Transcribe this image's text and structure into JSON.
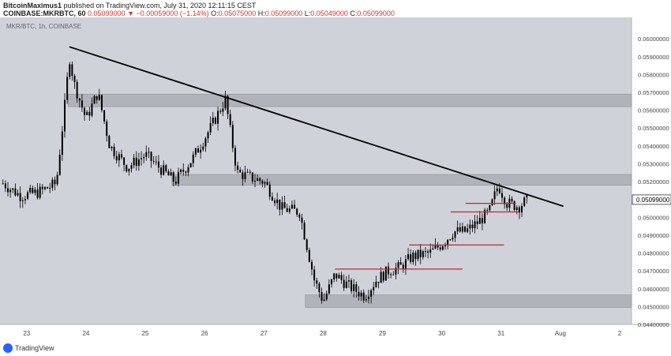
{
  "header": {
    "author": "BitcoinMaximus1",
    "published": "published on TradingView.com, July 31, 2020 12:11:15 CEST",
    "symbol": "COINBASE:MKRBTC, 60",
    "last": "0.05099000",
    "change": "▼ −0.00059000 (−1.14%)",
    "o_label": "O:",
    "o_value": "0.05075000",
    "h_label": "H:",
    "h_value": "0.05099000",
    "l_label": "L:",
    "l_value": "0.05049000",
    "c_label": "C:",
    "c_value": "0.05099000"
  },
  "footer": {
    "brand": "TradingView",
    "logo_icon": "tradingview-logo-icon"
  },
  "colors": {
    "plot_bg": "#cfd2d9",
    "candle": "#000000",
    "zone": "#a9abb1",
    "trendline": "#000000",
    "level": "#c0282f",
    "axis_text": "#444444"
  },
  "chart_data": {
    "type": "candlestick",
    "title": "MKR/BTC, 1h, COINBASE",
    "x_ticks": [
      "23",
      "24",
      "25",
      "26",
      "27",
      "28",
      "29",
      "30",
      "31",
      "Aug",
      "2"
    ],
    "y_ticks": [
      "0.06000000",
      "0.05900000",
      "0.05800000",
      "0.05700000",
      "0.05600000",
      "0.05500000",
      "0.05400000",
      "0.05300000",
      "0.05200000",
      "0.05000000",
      "0.04900000",
      "0.04800000",
      "0.04700000",
      "0.04600000",
      "0.04500000",
      "0.04400000"
    ],
    "ylim": [
      0.044,
      0.0612
    ],
    "xlim": [
      22.55,
      33.2
    ],
    "last_price": "0.05099000",
    "closes": [
      {
        "t": 22.6,
        "c": 0.0519
      },
      {
        "t": 22.9,
        "c": 0.0512
      },
      {
        "t": 23.2,
        "c": 0.0514
      },
      {
        "t": 23.5,
        "c": 0.0519
      },
      {
        "t": 23.65,
        "c": 0.0565
      },
      {
        "t": 23.72,
        "c": 0.059
      },
      {
        "t": 23.8,
        "c": 0.0575
      },
      {
        "t": 24.0,
        "c": 0.0555
      },
      {
        "t": 24.2,
        "c": 0.057
      },
      {
        "t": 24.4,
        "c": 0.054
      },
      {
        "t": 24.7,
        "c": 0.0528
      },
      {
        "t": 25.0,
        "c": 0.0535
      },
      {
        "t": 25.3,
        "c": 0.0526
      },
      {
        "t": 25.5,
        "c": 0.052
      },
      {
        "t": 25.8,
        "c": 0.0533
      },
      {
        "t": 26.1,
        "c": 0.055
      },
      {
        "t": 26.35,
        "c": 0.0566
      },
      {
        "t": 26.45,
        "c": 0.0545
      },
      {
        "t": 26.55,
        "c": 0.0525
      },
      {
        "t": 26.8,
        "c": 0.0522
      },
      {
        "t": 27.0,
        "c": 0.052
      },
      {
        "t": 27.3,
        "c": 0.0505
      },
      {
        "t": 27.6,
        "c": 0.0503
      },
      {
        "t": 27.7,
        "c": 0.0488
      },
      {
        "t": 27.85,
        "c": 0.0465
      },
      {
        "t": 28.0,
        "c": 0.0453
      },
      {
        "t": 28.2,
        "c": 0.0468
      },
      {
        "t": 28.45,
        "c": 0.0461
      },
      {
        "t": 28.7,
        "c": 0.0456
      },
      {
        "t": 28.9,
        "c": 0.0465
      },
      {
        "t": 29.1,
        "c": 0.047
      },
      {
        "t": 29.3,
        "c": 0.0472
      },
      {
        "t": 29.5,
        "c": 0.0478
      },
      {
        "t": 29.8,
        "c": 0.048
      },
      {
        "t": 30.0,
        "c": 0.0485
      },
      {
        "t": 30.2,
        "c": 0.0492
      },
      {
        "t": 30.4,
        "c": 0.0492
      },
      {
        "t": 30.6,
        "c": 0.0497
      },
      {
        "t": 30.8,
        "c": 0.0503
      },
      {
        "t": 30.95,
        "c": 0.0518
      },
      {
        "t": 31.1,
        "c": 0.0508
      },
      {
        "t": 31.3,
        "c": 0.0506
      },
      {
        "t": 31.45,
        "c": 0.051
      }
    ],
    "zones": [
      {
        "t0": 23.7,
        "t1": 33.2,
        "y0": 0.0562,
        "y1": 0.0569
      },
      {
        "t0": 25.45,
        "t1": 33.2,
        "y0": 0.0518,
        "y1": 0.0524
      },
      {
        "t0": 27.7,
        "t1": 33.2,
        "y0": 0.04495,
        "y1": 0.04565
      }
    ],
    "trendline": {
      "t0": 23.72,
      "y0": 0.05955,
      "t1": 32.05,
      "y1": 0.05062
    },
    "levels": [
      {
        "t0": 28.2,
        "t1": 30.35,
        "y": 0.0471
      },
      {
        "t0": 29.45,
        "t1": 31.05,
        "y": 0.04845
      },
      {
        "t0": 30.15,
        "t1": 31.3,
        "y": 0.0503
      },
      {
        "t0": 30.4,
        "t1": 31.25,
        "y": 0.05078
      }
    ]
  }
}
